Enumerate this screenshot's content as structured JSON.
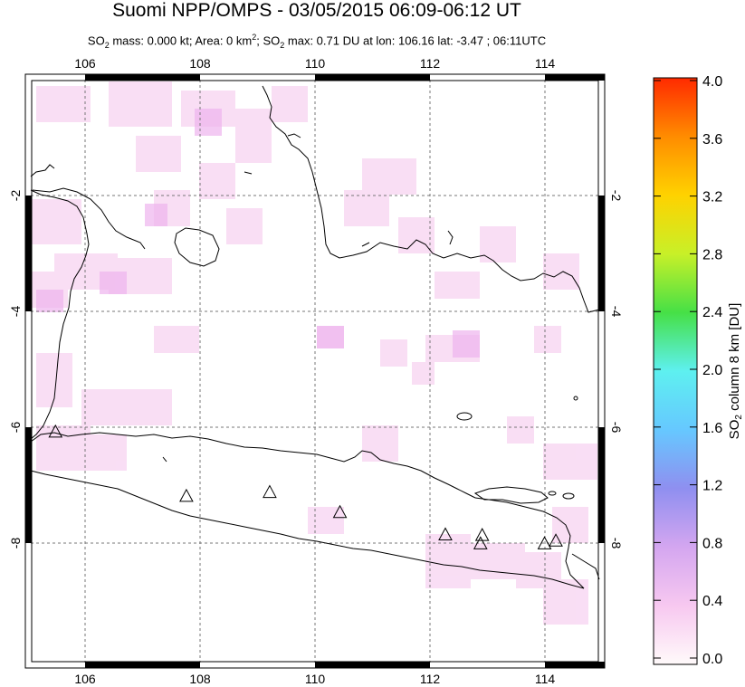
{
  "header": {
    "title": "Suomi NPP/OMPS - 03/05/2015 06:09-06:12 UT",
    "subtitle_mass_label": "SO",
    "subtitle_mass_rest": " mass: 0.000 kt; Area: 0 km",
    "subtitle_area_sup": "2",
    "subtitle_so2_label": "; SO",
    "subtitle_max_rest": " max: 0.71 DU at lon: 106.16 lat: -3.47 ; 06:11UTC",
    "sub_2": "2"
  },
  "map": {
    "lon_ticks": [
      "106",
      "108",
      "110",
      "112",
      "114"
    ],
    "lat_ticks": [
      "-2",
      "-4",
      "-6",
      "-8"
    ],
    "lon_range": [
      105,
      115
    ],
    "lat_range": [
      -10.2,
      0.2
    ]
  },
  "colorbar": {
    "ticks": [
      "4.0",
      "3.6",
      "3.2",
      "2.8",
      "2.4",
      "2.0",
      "1.6",
      "1.2",
      "0.8",
      "0.4",
      "0.0"
    ],
    "label_prefix": "SO",
    "label_sub": "2",
    "label_suffix": " column 8 km [DU]",
    "colors": [
      "#fffafa",
      "#f7c8f0",
      "#d4a6f0",
      "#8f8ff0",
      "#66c8ff",
      "#5ef0f0",
      "#46e046",
      "#c8f028",
      "#ffd200",
      "#ff8c00",
      "#ff2a00"
    ]
  },
  "volcanoes": [
    {
      "lon": 105.42,
      "lat": -6.1
    },
    {
      "lon": 107.73,
      "lat": -7.25
    },
    {
      "lon": 109.2,
      "lat": -7.18
    },
    {
      "lon": 110.44,
      "lat": -7.54
    },
    {
      "lon": 112.3,
      "lat": -7.94
    },
    {
      "lon": 112.95,
      "lat": -7.95
    },
    {
      "lon": 112.92,
      "lat": -8.1
    },
    {
      "lon": 114.05,
      "lat": -8.1
    },
    {
      "lon": 114.25,
      "lat": -8.05
    }
  ]
}
